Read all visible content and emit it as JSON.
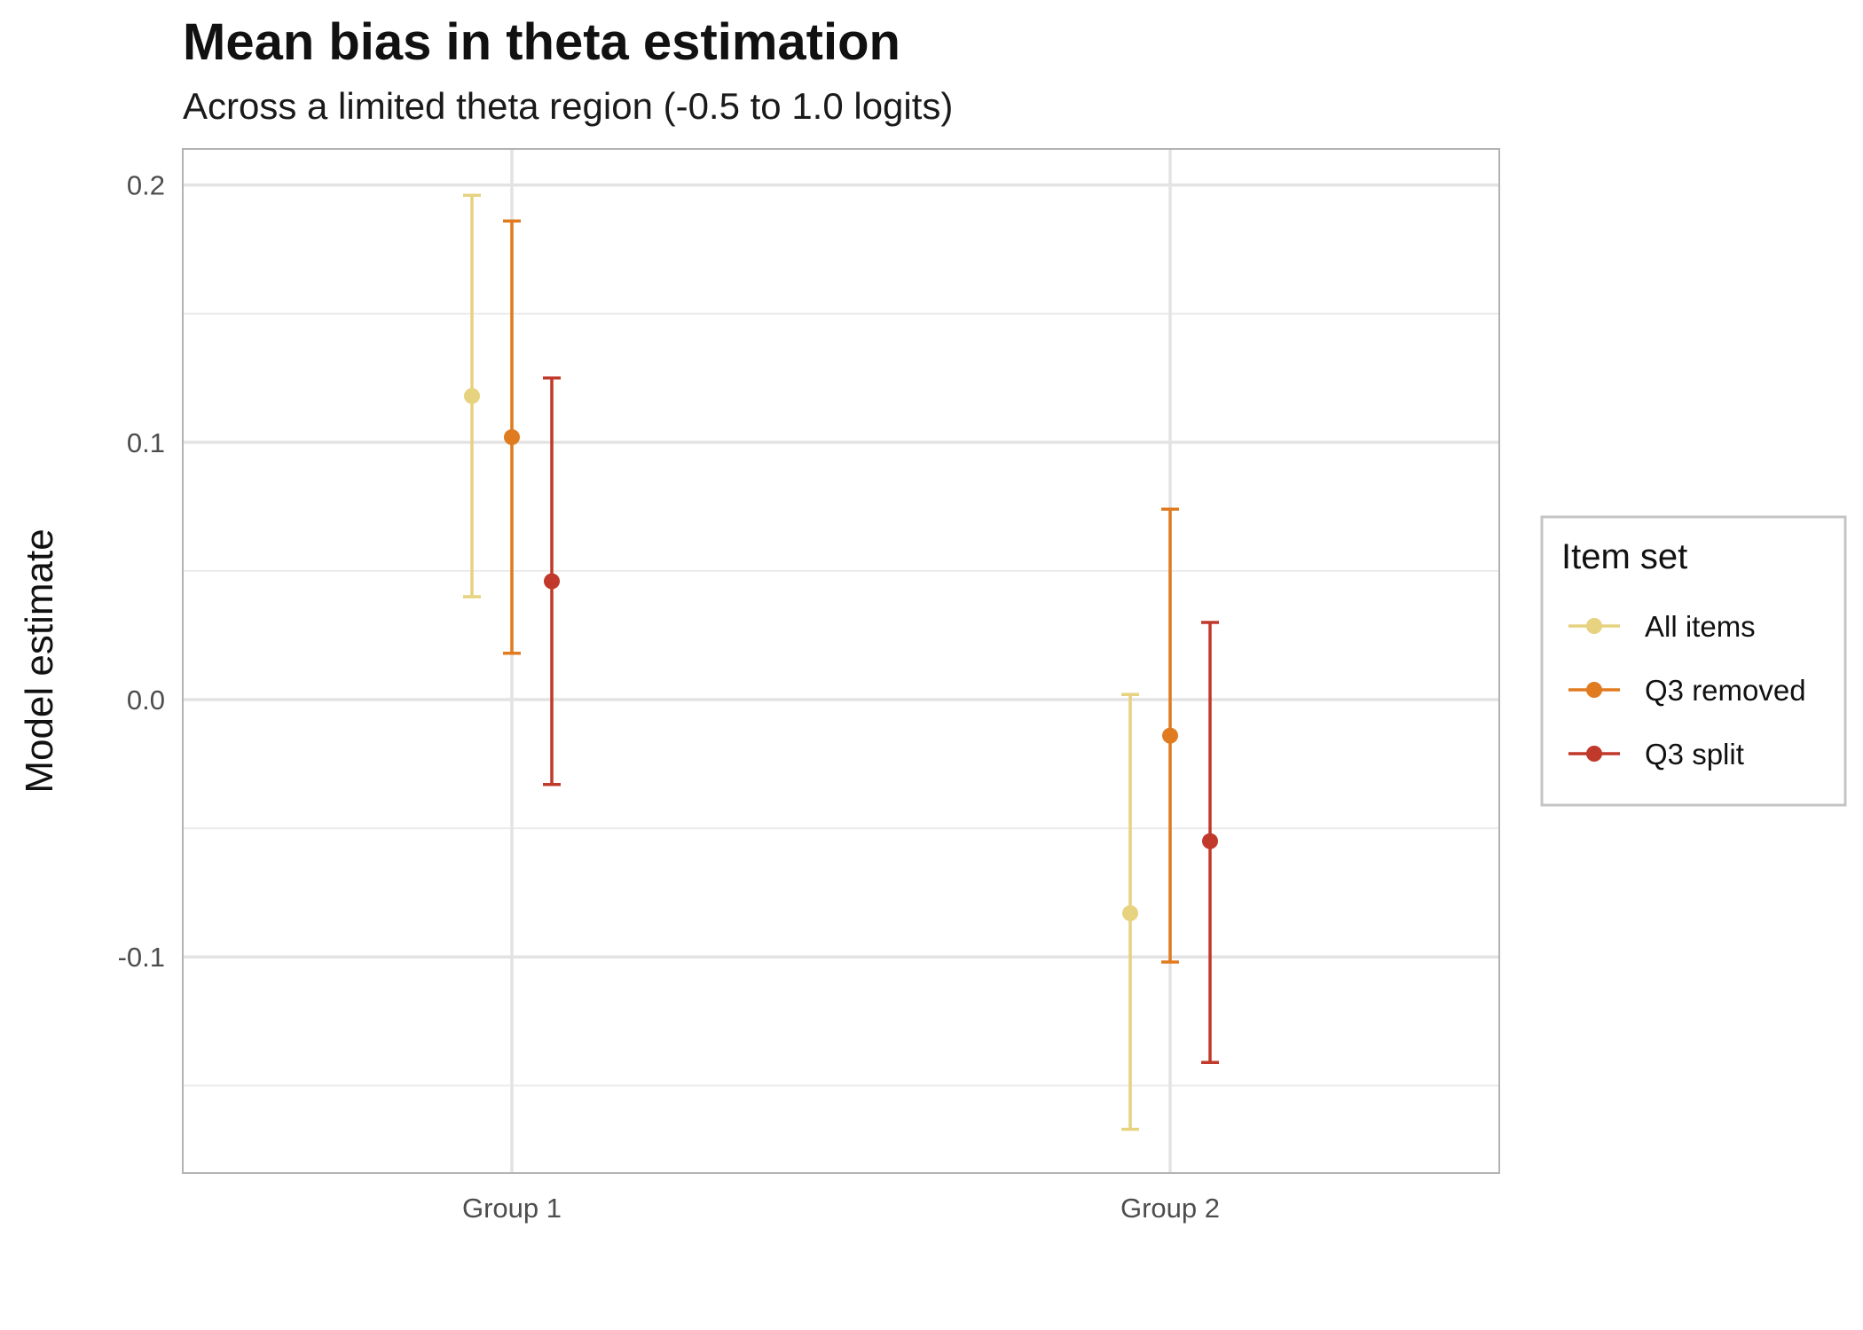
{
  "chart_data": {
    "type": "errorbar",
    "title": "Mean bias in theta estimation",
    "subtitle": "Across a limited theta region (-0.5 to 1.0 logits)",
    "xlabel": "",
    "ylabel": "Model estimate",
    "categories": [
      "Group 1",
      "Group 2"
    ],
    "y_ticks": [
      -0.1,
      0.0,
      0.1,
      0.2
    ],
    "y_tick_labels": [
      "-0.1",
      "0.0",
      "0.1",
      "0.2"
    ],
    "ylim": [
      -0.184,
      0.214
    ],
    "grid": true,
    "legend": {
      "title": "Item set",
      "position": "right"
    },
    "series": [
      {
        "name": "All items",
        "color": "#E6D27F",
        "values": [
          0.118,
          -0.083
        ],
        "lower": [
          0.04,
          -0.167
        ],
        "upper": [
          0.196,
          0.002
        ]
      },
      {
        "name": "Q3 removed",
        "color": "#E07B20",
        "values": [
          0.102,
          -0.014
        ],
        "lower": [
          0.018,
          -0.102
        ],
        "upper": [
          0.186,
          0.074
        ]
      },
      {
        "name": "Q3 split",
        "color": "#C0392B",
        "values": [
          0.046,
          -0.055
        ],
        "lower": [
          -0.033,
          -0.141
        ],
        "upper": [
          0.125,
          0.03
        ]
      }
    ]
  }
}
